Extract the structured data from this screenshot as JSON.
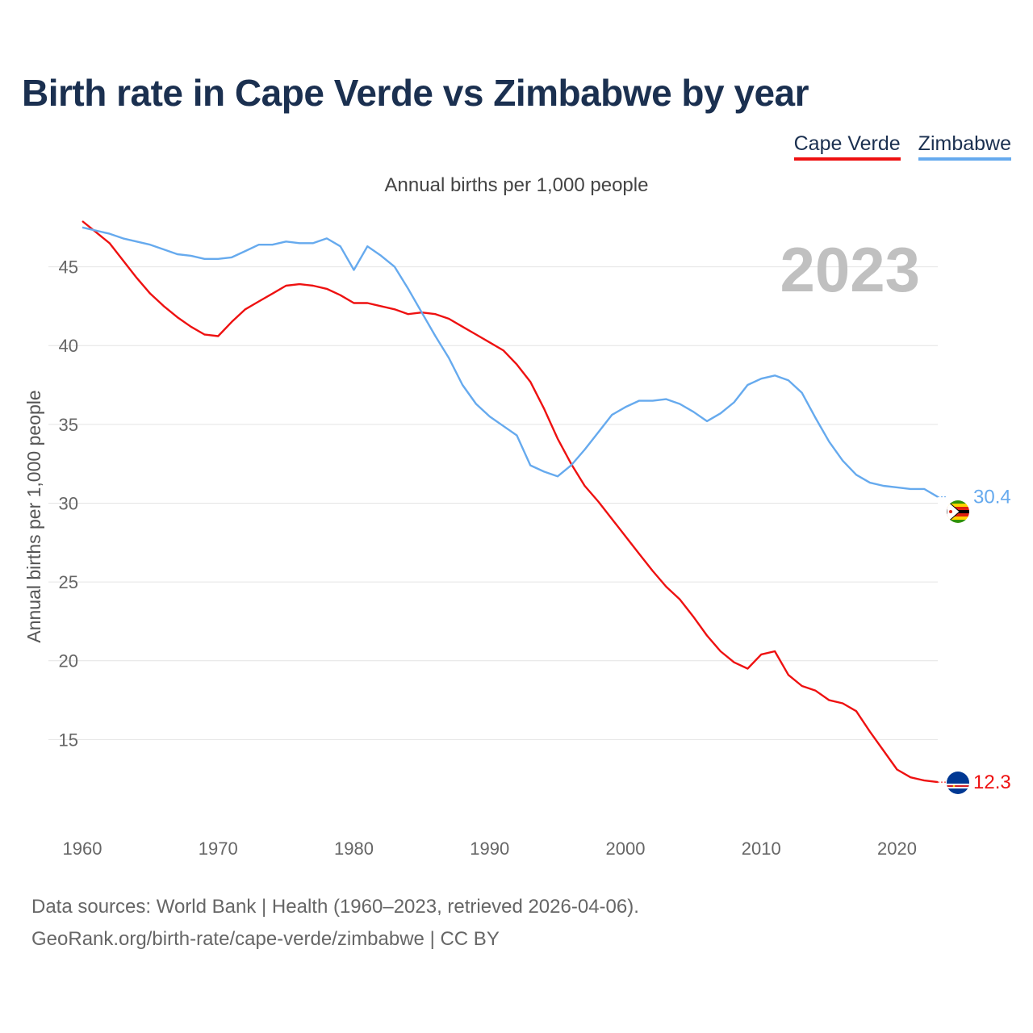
{
  "title": "Birth rate in Cape Verde vs Zimbabwe by year",
  "subtitle": "Annual births per 1,000 people",
  "legend": [
    {
      "name": "Cape Verde",
      "color": "#ee1111"
    },
    {
      "name": "Zimbabwe",
      "color": "#66aaee"
    }
  ],
  "year_display": "2023",
  "source": {
    "line1": "Data sources: World Bank | Health (1960–2023, retrieved 2026-04-06).",
    "line2": "GeoRank.org/birth-rate/cape-verde/zimbabwe | CC BY"
  },
  "chart_data": {
    "type": "line",
    "title": "Birth rate in Cape Verde vs Zimbabwe by year",
    "xlabel": "",
    "ylabel": "Annual births per 1,000 people",
    "xlim": [
      1960,
      2023
    ],
    "ylim": [
      10,
      48
    ],
    "x_ticks": [
      1960,
      1970,
      1980,
      1990,
      2000,
      2010,
      2020
    ],
    "y_ticks": [
      15,
      20,
      25,
      30,
      35,
      40,
      45
    ],
    "grid": true,
    "x": [
      1960,
      1961,
      1962,
      1963,
      1964,
      1965,
      1966,
      1967,
      1968,
      1969,
      1970,
      1971,
      1972,
      1973,
      1974,
      1975,
      1976,
      1977,
      1978,
      1979,
      1980,
      1981,
      1982,
      1983,
      1984,
      1985,
      1986,
      1987,
      1988,
      1989,
      1990,
      1991,
      1992,
      1993,
      1994,
      1995,
      1996,
      1997,
      1998,
      1999,
      2000,
      2001,
      2002,
      2003,
      2004,
      2005,
      2006,
      2007,
      2008,
      2009,
      2010,
      2011,
      2012,
      2013,
      2014,
      2015,
      2016,
      2017,
      2018,
      2019,
      2020,
      2021,
      2022,
      2023
    ],
    "series": [
      {
        "name": "Cape Verde",
        "color": "#ee1111",
        "end_label": "12.3",
        "flag": "cape-verde-flag-icon",
        "values": [
          47.9,
          47.2,
          46.5,
          45.4,
          44.3,
          43.3,
          42.5,
          41.8,
          41.2,
          40.7,
          40.6,
          41.5,
          42.3,
          42.8,
          43.3,
          43.8,
          43.9,
          43.8,
          43.6,
          43.2,
          42.7,
          42.7,
          42.5,
          42.3,
          42.0,
          42.1,
          42.0,
          41.7,
          41.2,
          40.7,
          40.2,
          39.7,
          38.8,
          37.7,
          36.0,
          34.1,
          32.5,
          31.1,
          30.1,
          29.0,
          27.9,
          26.8,
          25.7,
          24.7,
          23.9,
          22.8,
          21.6,
          20.6,
          19.9,
          19.5,
          20.4,
          20.6,
          19.1,
          18.4,
          18.1,
          17.5,
          17.3,
          16.8,
          15.5,
          14.3,
          13.1,
          12.6,
          12.4,
          12.3
        ]
      },
      {
        "name": "Zimbabwe",
        "color": "#66aaee",
        "end_label": "30.4",
        "flag": "zimbabwe-flag-icon",
        "values": [
          47.5,
          47.3,
          47.1,
          46.8,
          46.6,
          46.4,
          46.1,
          45.8,
          45.7,
          45.5,
          45.5,
          45.6,
          46.0,
          46.4,
          46.4,
          46.6,
          46.5,
          46.5,
          46.8,
          46.3,
          44.8,
          46.3,
          45.7,
          45.0,
          43.6,
          42.1,
          40.6,
          39.2,
          37.5,
          36.3,
          35.5,
          34.9,
          34.3,
          32.4,
          32.0,
          31.7,
          32.4,
          33.4,
          34.5,
          35.6,
          36.1,
          36.5,
          36.5,
          36.6,
          36.3,
          35.8,
          35.2,
          35.7,
          36.4,
          37.5,
          37.9,
          38.1,
          37.8,
          37.0,
          35.4,
          33.9,
          32.7,
          31.8,
          31.3,
          31.1,
          31.0,
          30.9,
          30.9,
          30.4
        ]
      }
    ]
  }
}
